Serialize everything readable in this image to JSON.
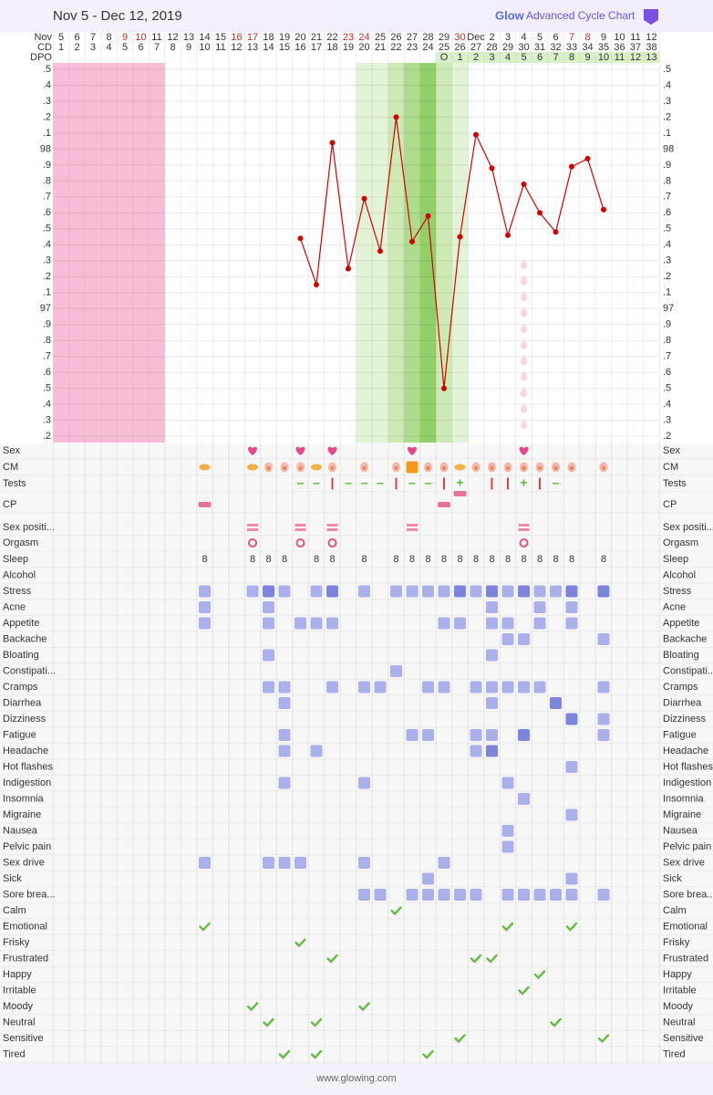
{
  "header": {
    "title": "Nov 5 - Dec 12, 2019",
    "logo_brand": "Glow",
    "logo_text": "Advanced Cycle Chart"
  },
  "footer": {
    "url": "www.glowing.com"
  },
  "days": {
    "month_label": "Nov",
    "cd_label": "CD",
    "dpo_label": "DPO",
    "dates": [
      5,
      6,
      7,
      8,
      9,
      10,
      11,
      12,
      13,
      14,
      15,
      16,
      17,
      18,
      19,
      20,
      21,
      22,
      23,
      24,
      25,
      26,
      27,
      28,
      29,
      30,
      "Dec",
      2,
      3,
      4,
      5,
      6,
      7,
      8,
      9,
      10,
      11,
      12
    ],
    "weekend_cols": [
      4,
      5,
      11,
      12,
      18,
      19,
      25,
      32,
      33
    ],
    "cd": [
      1,
      2,
      3,
      4,
      5,
      6,
      7,
      8,
      9,
      10,
      11,
      12,
      13,
      14,
      15,
      16,
      17,
      18,
      19,
      20,
      21,
      22,
      23,
      24,
      25,
      26,
      27,
      28,
      29,
      30,
      31,
      32,
      33,
      34,
      35,
      36,
      37,
      38
    ],
    "dpo": [
      null,
      null,
      null,
      null,
      null,
      null,
      null,
      null,
      null,
      null,
      null,
      null,
      null,
      null,
      null,
      null,
      null,
      null,
      null,
      null,
      null,
      null,
      null,
      null,
      "O",
      1,
      2,
      3,
      4,
      5,
      6,
      7,
      8,
      9,
      10,
      11,
      12,
      13
    ],
    "period_cols": [
      0,
      1,
      2,
      3,
      4,
      5,
      6
    ],
    "fertile_cols": [
      19,
      20,
      21,
      22,
      23,
      24,
      25
    ],
    "fertile_levels": [
      1,
      1,
      2,
      3,
      4,
      2,
      1
    ],
    "spotting_cols": [
      29
    ]
  },
  "chart_data": {
    "type": "line",
    "color": "#d40000",
    "grid": true,
    "values": [
      null,
      null,
      null,
      null,
      null,
      null,
      null,
      null,
      null,
      null,
      null,
      null,
      null,
      null,
      null,
      97.44,
      97.15,
      98.04,
      97.25,
      97.69,
      97.36,
      98.2,
      97.42,
      97.58,
      96.5,
      97.45,
      98.09,
      97.88,
      97.46,
      97.78,
      97.6,
      97.48,
      97.89,
      97.94,
      97.62,
      null,
      null,
      null
    ],
    "ylim": [
      96.16,
      98.54
    ],
    "yticks": [
      {
        "value": 96.2,
        "label": ".2"
      },
      {
        "value": 96.3,
        "label": ".3"
      },
      {
        "value": 96.4,
        "label": ".4"
      },
      {
        "value": 96.5,
        "label": ".5"
      },
      {
        "value": 96.6,
        "label": ".6"
      },
      {
        "value": 96.7,
        "label": ".7"
      },
      {
        "value": 96.8,
        "label": ".8"
      },
      {
        "value": 96.9,
        "label": ".9"
      },
      97,
      {
        "value": 97.1,
        "label": ".1"
      },
      {
        "value": 97.2,
        "label": ".2"
      },
      {
        "value": 97.3,
        "label": ".3"
      },
      {
        "value": 97.4,
        "label": ".4"
      },
      {
        "value": 97.5,
        "label": ".5"
      },
      {
        "value": 97.6,
        "label": ".6"
      },
      {
        "value": 97.7,
        "label": ".7"
      },
      {
        "value": 97.8,
        "label": ".8"
      },
      {
        "value": 97.9,
        "label": ".9"
      },
      98,
      {
        "value": 98.1,
        "label": ".1"
      },
      {
        "value": 98.2,
        "label": ".2"
      },
      {
        "value": 98.3,
        "label": ".3"
      },
      {
        "value": 98.4,
        "label": ".4"
      },
      {
        "value": 98.5,
        "label": ".5"
      }
    ]
  },
  "rows": [
    {
      "label": "Sex",
      "kind": "heart",
      "cols": [
        12,
        15,
        17,
        22,
        29
      ]
    },
    {
      "label": "CM",
      "kind": "cm",
      "cols": [
        9,
        12,
        13,
        14,
        15,
        16,
        17,
        19,
        21,
        22,
        23,
        24,
        25,
        26,
        27,
        28,
        29,
        30,
        31,
        32,
        34
      ],
      "styles": [
        "creamy",
        "creamy",
        "egg",
        "egg",
        "egg",
        "creamy",
        "egg",
        "egg",
        "egg",
        "sticky",
        "egg",
        "egg",
        "creamy",
        "egg",
        "egg",
        "egg",
        "egg",
        "egg",
        "egg",
        "egg",
        "egg"
      ]
    },
    {
      "label": "Tests",
      "kind": "tests",
      "cols": [
        15,
        16,
        17,
        18,
        19,
        20,
        21,
        22,
        23,
        24,
        25,
        27,
        28,
        29,
        30,
        31
      ],
      "results": [
        "–",
        "–",
        "|",
        "–",
        "–",
        "–",
        "|",
        "–",
        "–",
        "|",
        "+",
        "|",
        "|",
        "+",
        "|",
        "–"
      ],
      "colors": [
        "#5cb83c",
        "#5cb83c",
        "#e0302a",
        "#5cb83c",
        "#5cb83c",
        "#5cb83c",
        "#e0302a",
        "#5cb83c",
        "#5cb83c",
        "#e0302a",
        "#5cb83c",
        "#e0302a",
        "#e0302a",
        "#5cb83c",
        "#e0302a",
        "#5cb83c"
      ]
    },
    {
      "label": "CP",
      "kind": "cp",
      "cols": [
        9,
        24,
        25
      ],
      "levels": [
        1,
        1,
        2
      ]
    },
    {
      "label": "Sex positi...",
      "kind": "position",
      "cols": [
        12,
        15,
        17,
        22,
        29
      ]
    },
    {
      "label": "Orgasm",
      "kind": "orgasm",
      "cols": [
        12,
        15,
        17,
        29
      ]
    },
    {
      "label": "Sleep",
      "kind": "sleep",
      "cols": [
        9,
        12,
        13,
        14,
        16,
        17,
        19,
        21,
        22,
        23,
        24,
        25,
        26,
        27,
        28,
        29,
        30,
        31,
        32,
        34
      ],
      "values": [
        8,
        8,
        8,
        8,
        8,
        8,
        8,
        8,
        8,
        8,
        8,
        8,
        8,
        8,
        8,
        8,
        8,
        8,
        8,
        8
      ]
    },
    {
      "label": "Alcohol",
      "kind": "symptom",
      "cols": [],
      "levels": []
    },
    {
      "label": "Stress",
      "kind": "symptom",
      "cols": [
        9,
        12,
        13,
        14,
        16,
        17,
        19,
        21,
        22,
        23,
        24,
        25,
        26,
        27,
        28,
        29,
        30,
        31,
        32,
        34
      ],
      "levels": [
        1,
        1,
        2,
        1,
        1,
        2,
        1,
        1,
        1,
        1,
        1,
        2,
        1,
        2,
        1,
        2,
        1,
        1,
        2,
        2
      ]
    },
    {
      "label": "Acne",
      "kind": "symptom",
      "cols": [
        9,
        13,
        27,
        30,
        32
      ],
      "levels": [
        1,
        1,
        1,
        1,
        1
      ]
    },
    {
      "label": "Appetite",
      "kind": "symptom",
      "cols": [
        9,
        13,
        15,
        16,
        17,
        24,
        25,
        27,
        28,
        30,
        32
      ],
      "levels": [
        1,
        1,
        1,
        1,
        1,
        1,
        1,
        1,
        1,
        1,
        1
      ]
    },
    {
      "label": "Backache",
      "kind": "symptom",
      "cols": [
        28,
        29,
        34
      ],
      "levels": [
        1,
        1,
        1
      ]
    },
    {
      "label": "Bloating",
      "kind": "symptom",
      "cols": [
        13,
        27
      ],
      "levels": [
        1,
        1
      ]
    },
    {
      "label": "Constipati...",
      "kind": "symptom",
      "cols": [
        21
      ],
      "levels": [
        1
      ]
    },
    {
      "label": "Cramps",
      "kind": "symptom",
      "cols": [
        13,
        14,
        17,
        19,
        20,
        23,
        24,
        26,
        27,
        28,
        29,
        30,
        34
      ],
      "levels": [
        1,
        1,
        1,
        1,
        1,
        1,
        1,
        1,
        1,
        1,
        1,
        1,
        1
      ]
    },
    {
      "label": "Diarrhea",
      "kind": "symptom",
      "cols": [
        14,
        27,
        31
      ],
      "levels": [
        1,
        1,
        2
      ]
    },
    {
      "label": "Dizziness",
      "kind": "symptom",
      "cols": [
        32,
        34
      ],
      "levels": [
        2,
        1
      ]
    },
    {
      "label": "Fatigue",
      "kind": "symptom",
      "cols": [
        14,
        22,
        23,
        26,
        27,
        29,
        34
      ],
      "levels": [
        1,
        1,
        1,
        1,
        1,
        2,
        1
      ]
    },
    {
      "label": "Headache",
      "kind": "symptom",
      "cols": [
        14,
        16,
        26,
        27
      ],
      "levels": [
        1,
        1,
        1,
        2
      ]
    },
    {
      "label": "Hot flashes",
      "kind": "symptom",
      "cols": [
        32
      ],
      "levels": [
        1
      ]
    },
    {
      "label": "Indigestion",
      "kind": "symptom",
      "cols": [
        14,
        19,
        28
      ],
      "levels": [
        1,
        1,
        1
      ]
    },
    {
      "label": "Insomnia",
      "kind": "symptom",
      "cols": [
        29
      ],
      "levels": [
        1
      ]
    },
    {
      "label": "Migraine",
      "kind": "symptom",
      "cols": [
        32
      ],
      "levels": [
        1
      ]
    },
    {
      "label": "Nausea",
      "kind": "symptom",
      "cols": [
        28
      ],
      "levels": [
        1
      ]
    },
    {
      "label": "Pelvic pain",
      "kind": "symptom",
      "cols": [
        28
      ],
      "levels": [
        1
      ]
    },
    {
      "label": "Sex drive",
      "kind": "symptom",
      "cols": [
        9,
        13,
        14,
        15,
        19,
        24
      ],
      "levels": [
        1,
        1,
        1,
        1,
        1,
        1
      ]
    },
    {
      "label": "Sick",
      "kind": "symptom",
      "cols": [
        23,
        32
      ],
      "levels": [
        1,
        1
      ]
    },
    {
      "label": "Sore brea...",
      "kind": "symptom",
      "cols": [
        19,
        20,
        22,
        23,
        24,
        25,
        26,
        28,
        29,
        30,
        31,
        32,
        34
      ],
      "levels": [
        1,
        1,
        1,
        1,
        1,
        1,
        1,
        1,
        1,
        1,
        1,
        1,
        1
      ]
    },
    {
      "label": "Calm",
      "kind": "mood",
      "cols": [
        21
      ]
    },
    {
      "label": "Emotional",
      "kind": "mood",
      "cols": [
        9,
        28,
        32
      ]
    },
    {
      "label": "Frisky",
      "kind": "mood",
      "cols": [
        15
      ]
    },
    {
      "label": "Frustrated",
      "kind": "mood",
      "cols": [
        17,
        26,
        27
      ]
    },
    {
      "label": "Happy",
      "kind": "mood",
      "cols": [
        30
      ]
    },
    {
      "label": "Irritable",
      "kind": "mood",
      "cols": [
        29
      ]
    },
    {
      "label": "Moody",
      "kind": "mood",
      "cols": [
        12,
        19
      ]
    },
    {
      "label": "Neutral",
      "kind": "mood",
      "cols": [
        13,
        16,
        31
      ]
    },
    {
      "label": "Sensitive",
      "kind": "mood",
      "cols": [
        25,
        34
      ]
    },
    {
      "label": "Tired",
      "kind": "mood",
      "cols": [
        14,
        16,
        23
      ]
    }
  ]
}
